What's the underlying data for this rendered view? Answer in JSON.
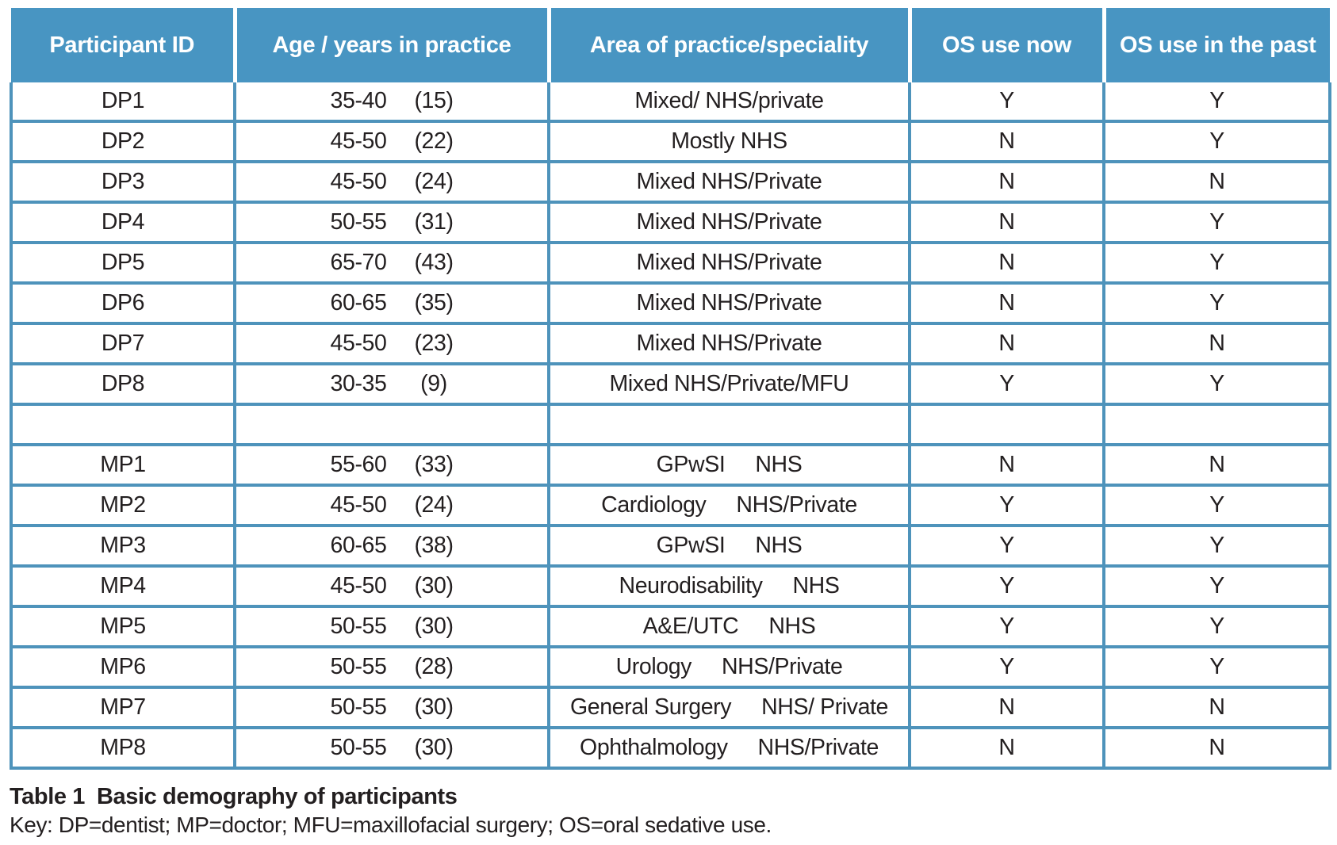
{
  "table": {
    "headers": [
      "Participant ID",
      "Age / years in practice",
      "Area of practice/speciality",
      "OS use now",
      "OS use in the past"
    ],
    "rows": [
      {
        "id": "DP1",
        "age": "35-40",
        "years": "(15)",
        "specialty": "Mixed/ NHS/private",
        "sector": "",
        "os_now": "Y",
        "os_past": "Y"
      },
      {
        "id": "DP2",
        "age": "45-50",
        "years": "(22)",
        "specialty": "Mostly NHS",
        "sector": "",
        "os_now": "N",
        "os_past": "Y"
      },
      {
        "id": "DP3",
        "age": "45-50",
        "years": "(24)",
        "specialty": "Mixed NHS/Private",
        "sector": "",
        "os_now": "N",
        "os_past": "N"
      },
      {
        "id": "DP4",
        "age": "50-55",
        "years": "(31)",
        "specialty": "Mixed NHS/Private",
        "sector": "",
        "os_now": "N",
        "os_past": "Y"
      },
      {
        "id": "DP5",
        "age": "65-70",
        "years": "(43)",
        "specialty": "Mixed NHS/Private",
        "sector": "",
        "os_now": "N",
        "os_past": "Y"
      },
      {
        "id": "DP6",
        "age": "60-65",
        "years": "(35)",
        "specialty": "Mixed NHS/Private",
        "sector": "",
        "os_now": "N",
        "os_past": "Y"
      },
      {
        "id": "DP7",
        "age": "45-50",
        "years": "(23)",
        "specialty": "Mixed NHS/Private",
        "sector": "",
        "os_now": "N",
        "os_past": "N"
      },
      {
        "id": "DP8",
        "age": "30-35",
        "years": "(9)",
        "specialty": "Mixed NHS/Private/MFU",
        "sector": "",
        "os_now": "Y",
        "os_past": "Y"
      },
      {
        "id": "",
        "age": "",
        "years": "",
        "specialty": "",
        "sector": "",
        "os_now": "",
        "os_past": ""
      },
      {
        "id": "MP1",
        "age": "55-60",
        "years": "(33)",
        "specialty": "GPwSI",
        "sector": "NHS",
        "os_now": "N",
        "os_past": "N"
      },
      {
        "id": "MP2",
        "age": "45-50",
        "years": "(24)",
        "specialty": "Cardiology",
        "sector": "NHS/Private",
        "os_now": "Y",
        "os_past": "Y"
      },
      {
        "id": "MP3",
        "age": "60-65",
        "years": "(38)",
        "specialty": "GPwSI",
        "sector": "NHS",
        "os_now": "Y",
        "os_past": "Y"
      },
      {
        "id": "MP4",
        "age": "45-50",
        "years": "(30)",
        "specialty": "Neurodisability",
        "sector": "NHS",
        "os_now": "Y",
        "os_past": "Y"
      },
      {
        "id": "MP5",
        "age": "50-55",
        "years": "(30)",
        "specialty": "A&E/UTC",
        "sector": "NHS",
        "os_now": "Y",
        "os_past": "Y"
      },
      {
        "id": "MP6",
        "age": "50-55",
        "years": "(28)",
        "specialty": "Urology",
        "sector": "NHS/Private",
        "os_now": "Y",
        "os_past": "Y"
      },
      {
        "id": "MP7",
        "age": "50-55",
        "years": "(30)",
        "specialty": "General Surgery",
        "sector": "NHS/ Private",
        "os_now": "N",
        "os_past": "N"
      },
      {
        "id": "MP8",
        "age": "50-55",
        "years": "(30)",
        "specialty": "Ophthalmology",
        "sector": "NHS/Private",
        "os_now": "N",
        "os_past": "N"
      }
    ]
  },
  "caption": {
    "label": "Table 1",
    "title": "Basic demography of participants"
  },
  "key": "Key: DP=dentist; MP=doctor; MFU=maxillofacial surgery; OS=oral sedative use.",
  "colors": {
    "header_bg": "#4895C2",
    "header_text": "#FFFFFF",
    "border": "#4E93BB",
    "text": "#231F20",
    "background": "#FFFFFF"
  }
}
